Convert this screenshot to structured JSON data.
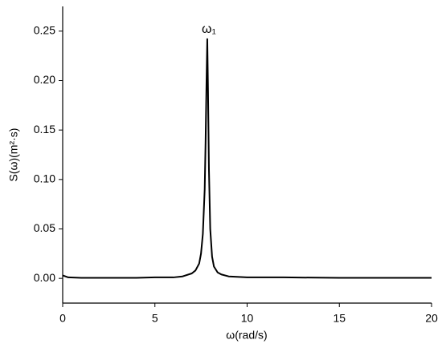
{
  "chart_data": {
    "type": "line",
    "x_label": "ω(rad/s)",
    "y_label": "S(ω)(m²·s)",
    "annotations": [
      "ω₁"
    ],
    "x": [
      0,
      0.3,
      1,
      2,
      3,
      4,
      5,
      6,
      6.5,
      7,
      7.2,
      7.4,
      7.5,
      7.6,
      7.7,
      7.75,
      7.8,
      7.84,
      7.88,
      7.93,
      8.0,
      8.1,
      8.2,
      8.4,
      8.6,
      9,
      10,
      12,
      15,
      18,
      20
    ],
    "series": [
      {
        "color": "#000000",
        "values": [
          0.003,
          0.001,
          0.0005,
          0.0005,
          0.0005,
          0.0005,
          0.001,
          0.001,
          0.002,
          0.005,
          0.008,
          0.015,
          0.025,
          0.045,
          0.09,
          0.14,
          0.2,
          0.242,
          0.19,
          0.11,
          0.05,
          0.022,
          0.012,
          0.006,
          0.004,
          0.002,
          0.001,
          0.001,
          0.0005,
          0.0005,
          0.0005
        ]
      }
    ],
    "xlim": [
      0,
      20
    ],
    "ylim": [
      -0.025,
      0.275
    ],
    "xticks": [
      0,
      5,
      10,
      15,
      20
    ],
    "yticks": [
      {
        "value": 0,
        "label": "0.00"
      },
      {
        "value": 0.05,
        "label": "0.05"
      },
      {
        "value": 0.1,
        "label": "0.10"
      },
      {
        "value": 0.15,
        "label": "0.15"
      },
      {
        "value": 0.2,
        "label": "0.20"
      },
      {
        "value": 0.25,
        "label": "0.25"
      }
    ]
  }
}
